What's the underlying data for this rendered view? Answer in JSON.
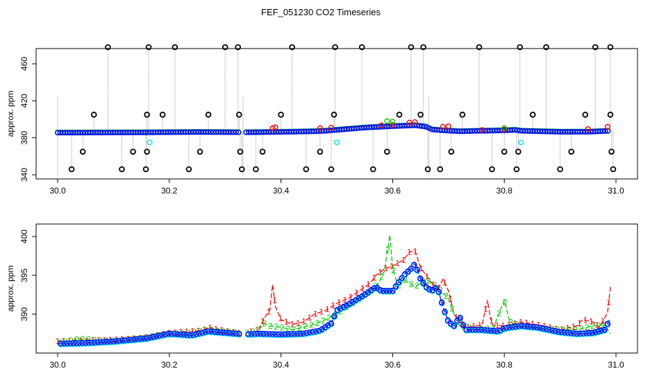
{
  "title": "FEF_051230  CO2 Timeseries",
  "colors": {
    "black": "#000000",
    "red": "#ff0000",
    "green": "#00cc00",
    "blue": "#0000ff",
    "cyan": "#00e5ee",
    "grey": "#999999"
  },
  "chart_data": [
    {
      "type": "scatter",
      "title": "",
      "xlabel": "",
      "ylabel": "approx. ppm",
      "xlim": [
        30.0,
        31.0
      ],
      "ylim": [
        340,
        480
      ],
      "xticks": [
        "30.0",
        "30.2",
        "30.4",
        "30.6",
        "30.8",
        "31.0"
      ],
      "yticks": [
        "340",
        "380",
        "420",
        "460"
      ],
      "grid": false,
      "legend": "none",
      "baseline": [
        [
          30.0,
          385.5
        ],
        [
          30.16,
          385.8
        ],
        [
          30.25,
          386.2
        ],
        [
          30.32,
          386.0
        ],
        [
          30.33,
          385.8
        ],
        [
          30.38,
          386.2
        ],
        [
          30.42,
          386.5
        ],
        [
          30.46,
          387.0
        ],
        [
          30.48,
          387.5
        ],
        [
          30.5,
          388.5
        ],
        [
          30.55,
          391
        ],
        [
          30.6,
          392.5
        ],
        [
          30.64,
          393.5
        ],
        [
          30.66,
          392
        ],
        [
          30.67,
          389
        ],
        [
          30.69,
          388
        ],
        [
          30.72,
          387
        ],
        [
          30.8,
          388
        ],
        [
          30.82,
          388.5
        ],
        [
          30.83,
          387.5
        ],
        [
          30.9,
          386.5
        ],
        [
          30.95,
          386.5
        ],
        [
          30.99,
          387.5
        ]
      ],
      "redpts": [
        [
          30.385,
          390.5
        ],
        [
          30.39,
          391.5
        ],
        [
          30.47,
          390.5
        ],
        [
          30.49,
          391
        ],
        [
          30.58,
          393.5
        ],
        [
          30.6,
          394
        ],
        [
          30.63,
          396.5
        ],
        [
          30.64,
          397
        ],
        [
          30.69,
          392
        ],
        [
          30.7,
          392.5
        ],
        [
          30.76,
          388.5
        ],
        [
          30.8,
          389
        ],
        [
          30.95,
          389.5
        ],
        [
          30.985,
          392
        ]
      ],
      "greenpts": [
        [
          30.59,
          398
        ],
        [
          30.6,
          397.5
        ],
        [
          30.8,
          390.5
        ]
      ],
      "cyanpts": [
        [
          30.165,
          375
        ],
        [
          30.5,
          375
        ],
        [
          30.83,
          375
        ]
      ],
      "spikes_high": [
        [
          30.09,
          478
        ],
        [
          30.163,
          478
        ],
        [
          30.21,
          478
        ],
        [
          30.3,
          478
        ],
        [
          30.323,
          478
        ],
        [
          30.42,
          478
        ],
        [
          30.497,
          478
        ],
        [
          30.545,
          478
        ],
        [
          30.633,
          478
        ],
        [
          30.655,
          478
        ],
        [
          30.755,
          478
        ],
        [
          30.828,
          478
        ],
        [
          30.875,
          478
        ],
        [
          30.963,
          478
        ],
        [
          30.99,
          478
        ]
      ],
      "spikes_mid": [
        [
          30.065,
          405
        ],
        [
          30.16,
          405
        ],
        [
          30.188,
          405
        ],
        [
          30.27,
          405
        ],
        [
          30.325,
          405
        ],
        [
          30.4,
          405
        ],
        [
          30.495,
          405
        ],
        [
          30.612,
          405
        ],
        [
          30.65,
          405
        ],
        [
          30.725,
          405
        ],
        [
          30.851,
          405
        ],
        [
          30.945,
          405
        ],
        [
          30.99,
          405
        ]
      ],
      "spikes_low": [
        [
          30.045,
          365
        ],
        [
          30.135,
          365
        ],
        [
          30.16,
          365
        ],
        [
          30.255,
          365
        ],
        [
          30.327,
          365
        ],
        [
          30.367,
          365
        ],
        [
          30.47,
          365
        ],
        [
          30.59,
          365
        ],
        [
          30.705,
          365
        ],
        [
          30.8,
          365
        ],
        [
          30.825,
          365
        ],
        [
          30.92,
          365
        ],
        [
          30.992,
          365
        ]
      ],
      "spikes_floor": [
        [
          30.025,
          346
        ],
        [
          30.115,
          346
        ],
        [
          30.158,
          346
        ],
        [
          30.235,
          346
        ],
        [
          30.33,
          346
        ],
        [
          30.355,
          346
        ],
        [
          30.445,
          346
        ],
        [
          30.49,
          346
        ],
        [
          30.565,
          346
        ],
        [
          30.663,
          346
        ],
        [
          30.685,
          346
        ],
        [
          30.778,
          346
        ],
        [
          30.822,
          346
        ],
        [
          30.9,
          346
        ],
        [
          30.995,
          346
        ]
      ]
    },
    {
      "type": "line",
      "title": "",
      "xlabel": "",
      "ylabel": "approx. ppm",
      "xlim": [
        30.0,
        31.0
      ],
      "ylim": [
        385.5,
        401
      ],
      "xticks": [
        "30.0",
        "30.2",
        "30.4",
        "30.6",
        "30.8",
        "31.0"
      ],
      "yticks": [
        "390",
        "395",
        "400"
      ],
      "grid": false,
      "legend": "none",
      "series": [
        {
          "marker": "1",
          "color": "#ff0000",
          "points": [
            [
              30.0,
              386.5
            ],
            [
              30.04,
              386.6
            ],
            [
              30.1,
              386.7
            ],
            [
              30.16,
              387
            ],
            [
              30.2,
              387.6
            ],
            [
              30.26,
              387.9
            ],
            [
              30.27,
              388.3
            ],
            [
              30.29,
              388
            ],
            [
              30.32,
              387.6
            ],
            [
              30.335,
              387.6
            ],
            [
              30.36,
              388
            ],
            [
              30.37,
              389.5
            ],
            [
              30.38,
              390.5
            ],
            [
              30.385,
              393.8
            ],
            [
              30.39,
              391
            ],
            [
              30.4,
              389.3
            ],
            [
              30.42,
              388.7
            ],
            [
              30.44,
              389
            ],
            [
              30.46,
              390
            ],
            [
              30.48,
              390.5
            ],
            [
              30.5,
              391.4
            ],
            [
              30.52,
              392
            ],
            [
              30.54,
              393
            ],
            [
              30.56,
              394
            ],
            [
              30.57,
              395
            ],
            [
              30.585,
              395.8
            ],
            [
              30.6,
              396.2
            ],
            [
              30.62,
              397
            ],
            [
              30.63,
              398
            ],
            [
              30.64,
              398.2
            ],
            [
              30.65,
              396
            ],
            [
              30.66,
              395
            ],
            [
              30.67,
              394
            ],
            [
              30.68,
              393
            ],
            [
              30.69,
              394.5
            ],
            [
              30.7,
              393
            ],
            [
              30.71,
              390
            ],
            [
              30.72,
              389
            ],
            [
              30.73,
              388.3
            ],
            [
              30.76,
              388.6
            ],
            [
              30.77,
              391.8
            ],
            [
              30.775,
              389.5
            ],
            [
              30.78,
              388.6
            ],
            [
              30.8,
              388.5
            ],
            [
              30.83,
              389
            ],
            [
              30.87,
              388.5
            ],
            [
              30.9,
              388
            ],
            [
              30.93,
              388.5
            ],
            [
              30.94,
              389.3
            ],
            [
              30.96,
              389
            ],
            [
              30.97,
              388.3
            ],
            [
              30.985,
              390.2
            ],
            [
              30.99,
              393.5
            ]
          ]
        },
        {
          "marker": "2",
          "color": "#00cc00",
          "points": [
            [
              30.0,
              386.3
            ],
            [
              30.04,
              386.8
            ],
            [
              30.1,
              386.5
            ],
            [
              30.16,
              387
            ],
            [
              30.2,
              387.5
            ],
            [
              30.24,
              387.6
            ],
            [
              30.27,
              388
            ],
            [
              30.32,
              387.6
            ],
            [
              30.335,
              387.5
            ],
            [
              30.36,
              388
            ],
            [
              30.37,
              388.8
            ],
            [
              30.38,
              388.5
            ],
            [
              30.4,
              388.3
            ],
            [
              30.42,
              388
            ],
            [
              30.46,
              388.7
            ],
            [
              30.48,
              389.3
            ],
            [
              30.5,
              390
            ],
            [
              30.52,
              391
            ],
            [
              30.54,
              392
            ],
            [
              30.56,
              393
            ],
            [
              30.575,
              394
            ],
            [
              30.585,
              395.5
            ],
            [
              30.595,
              400.2
            ],
            [
              30.6,
              396
            ],
            [
              30.61,
              393.5
            ],
            [
              30.62,
              394.5
            ],
            [
              30.64,
              393.5
            ],
            [
              30.66,
              394.5
            ],
            [
              30.68,
              393.5
            ],
            [
              30.7,
              392
            ],
            [
              30.71,
              390
            ],
            [
              30.72,
              388.5
            ],
            [
              30.75,
              388
            ],
            [
              30.78,
              388.2
            ],
            [
              30.8,
              391.8
            ],
            [
              30.81,
              389
            ],
            [
              30.83,
              388.5
            ],
            [
              30.86,
              388.2
            ],
            [
              30.9,
              388
            ],
            [
              30.93,
              388
            ],
            [
              30.96,
              388.5
            ],
            [
              30.98,
              388.6
            ],
            [
              30.99,
              387.5
            ]
          ]
        },
        {
          "marker": "3",
          "color": "#0000ff",
          "points": [
            [
              30.0,
              386.2
            ],
            [
              30.05,
              386.3
            ],
            [
              30.1,
              386.5
            ],
            [
              30.16,
              386.9
            ],
            [
              30.2,
              387.5
            ],
            [
              30.24,
              387.3
            ],
            [
              30.27,
              387.8
            ],
            [
              30.32,
              387.5
            ],
            [
              30.335,
              387.4
            ],
            [
              30.36,
              387.5
            ],
            [
              30.4,
              387.4
            ],
            [
              30.44,
              387.5
            ],
            [
              30.47,
              387.9
            ],
            [
              30.49,
              388.8
            ],
            [
              30.5,
              390.5
            ],
            [
              30.52,
              391.2
            ],
            [
              30.55,
              392.5
            ],
            [
              30.57,
              393.5
            ],
            [
              30.58,
              393
            ],
            [
              30.6,
              393
            ],
            [
              30.61,
              394
            ],
            [
              30.62,
              395
            ],
            [
              30.635,
              396
            ],
            [
              30.64,
              396.5
            ],
            [
              30.65,
              394.5
            ],
            [
              30.66,
              393.5
            ],
            [
              30.67,
              393
            ],
            [
              30.68,
              393.5
            ],
            [
              30.69,
              391
            ],
            [
              30.7,
              389
            ],
            [
              30.71,
              388.5
            ],
            [
              30.72,
              389.7
            ],
            [
              30.73,
              388
            ],
            [
              30.76,
              388
            ],
            [
              30.79,
              387.8
            ],
            [
              30.8,
              388.2
            ],
            [
              30.83,
              388.5
            ],
            [
              30.86,
              388.3
            ],
            [
              30.9,
              387.7
            ],
            [
              30.93,
              387.5
            ],
            [
              30.96,
              387.6
            ],
            [
              30.98,
              388
            ],
            [
              30.99,
              389.5
            ]
          ]
        }
      ]
    }
  ]
}
